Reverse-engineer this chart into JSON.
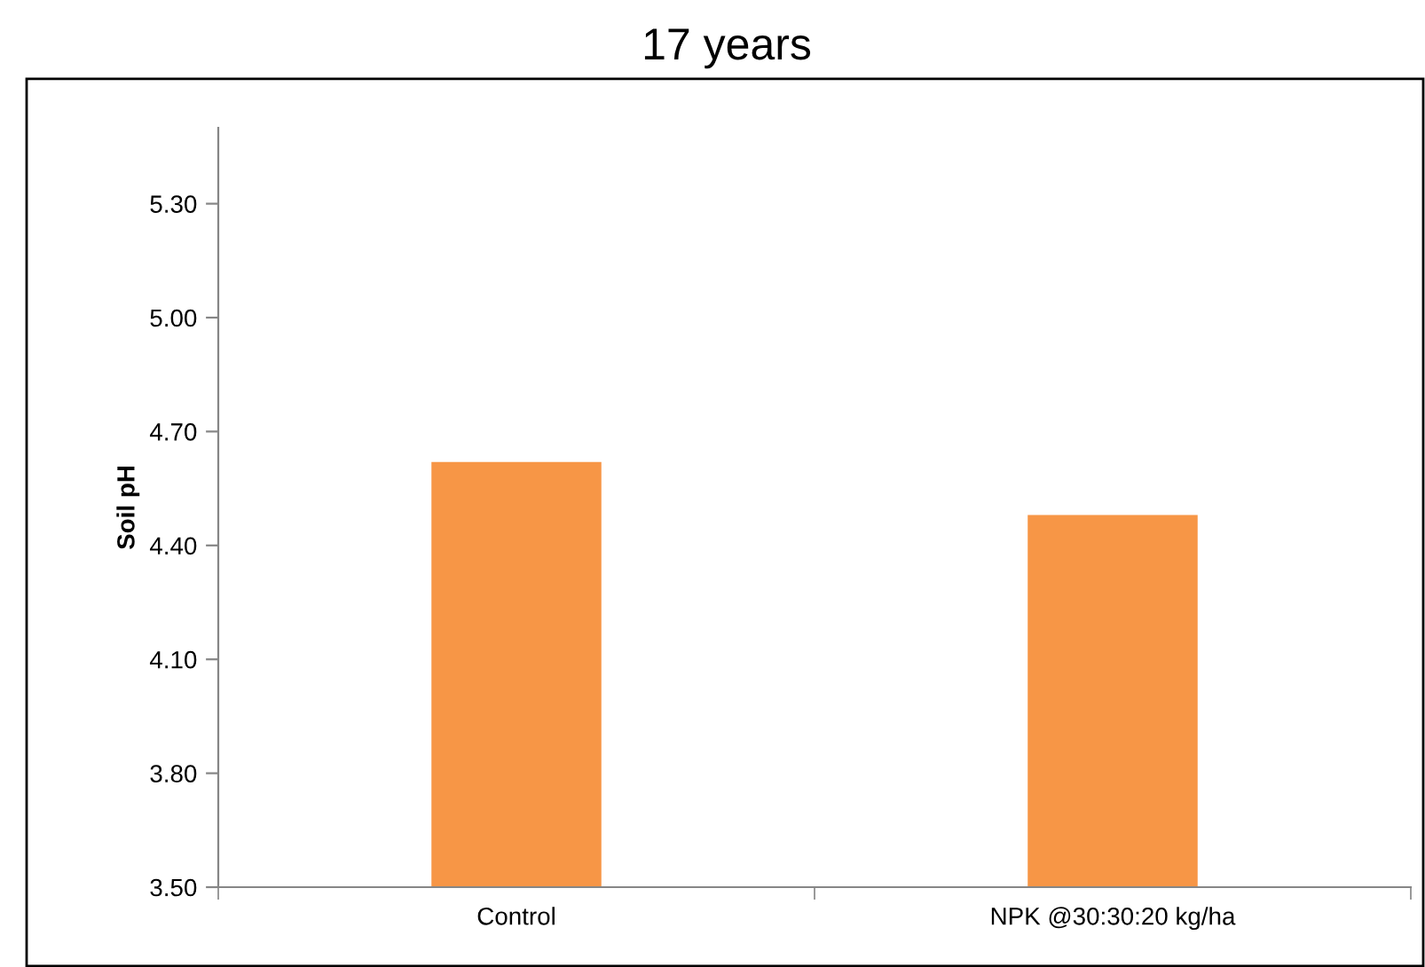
{
  "chart_data": {
    "type": "bar",
    "title": "17 years",
    "ylabel": "Soil pH",
    "categories": [
      "Control",
      "NPK @30:30:20 kg/ha"
    ],
    "values": [
      4.62,
      4.48
    ],
    "color": "#f79646",
    "ylim": [
      3.5,
      5.5
    ],
    "yticks": [
      {
        "value": 3.5,
        "label": "3.50"
      },
      {
        "value": 3.8,
        "label": "3.80"
      },
      {
        "value": 4.1,
        "label": "4.10"
      },
      {
        "value": 4.4,
        "label": "4.40"
      },
      {
        "value": 4.7,
        "label": "4.70"
      },
      {
        "value": 5.0,
        "label": "5.00"
      },
      {
        "value": 5.3,
        "label": "5.30"
      }
    ],
    "grid": false,
    "legend": false
  }
}
